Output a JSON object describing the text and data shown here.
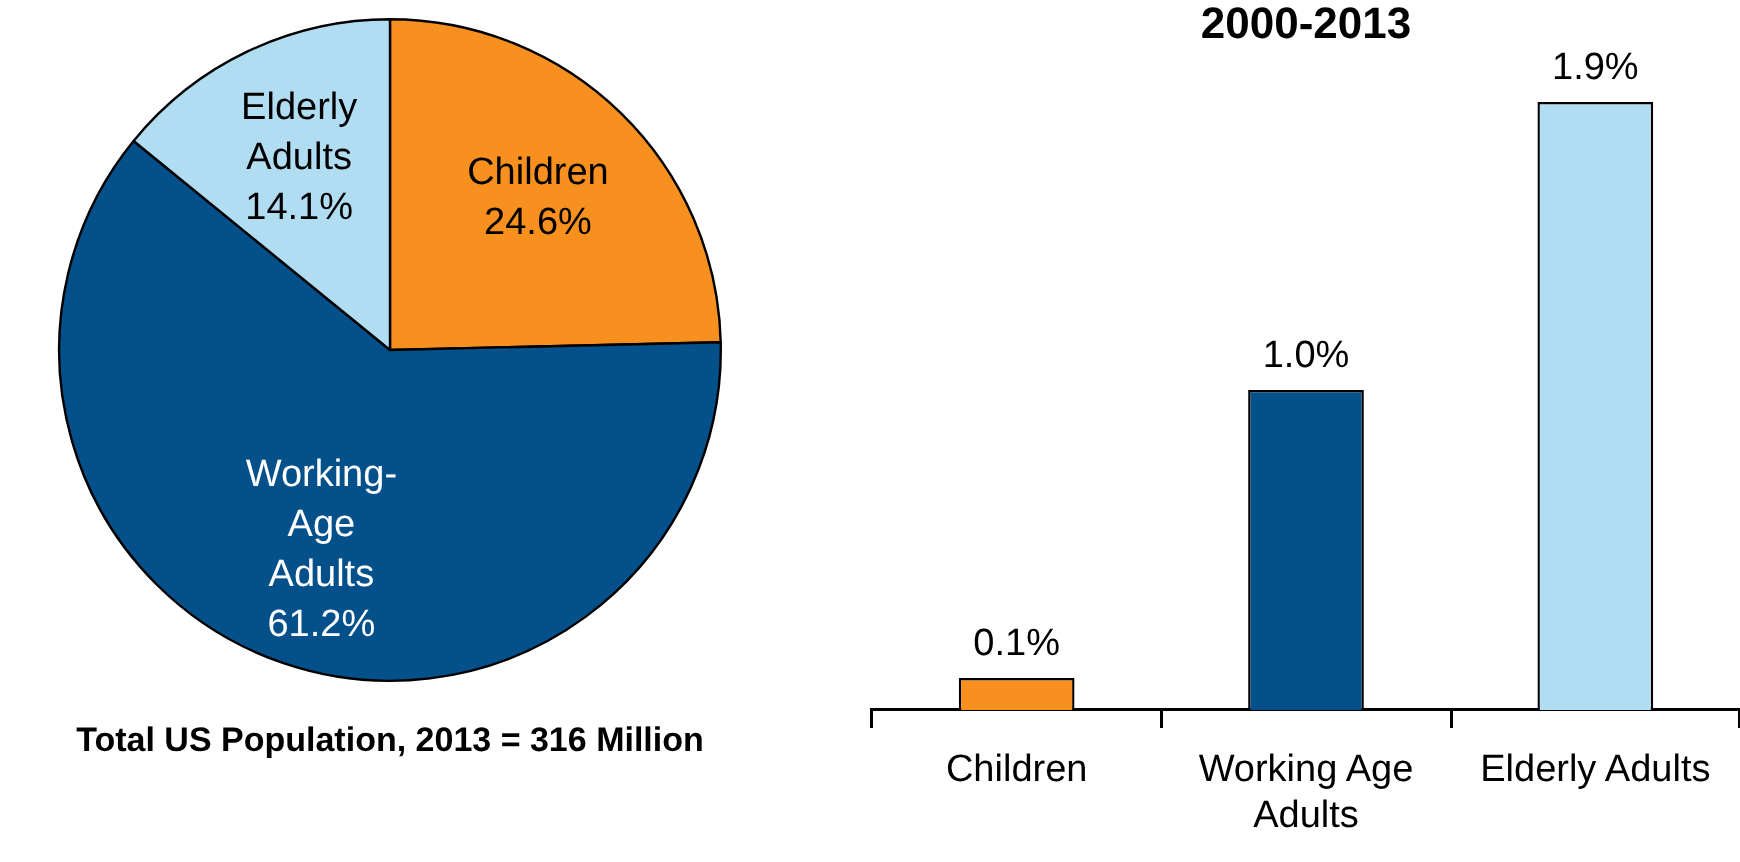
{
  "chart_data": [
    {
      "type": "pie",
      "categories": [
        "Children",
        "Working-Age Adults",
        "Elderly Adults"
      ],
      "values": [
        24.6,
        61.2,
        14.1
      ],
      "colors": [
        "#f7901e",
        "#03508a",
        "#b1ddf3"
      ],
      "value_labels": [
        "24.6%",
        "61.2%",
        "14.1%"
      ],
      "annotations": [
        "Total US Population, 2013 = 316 Million"
      ]
    },
    {
      "type": "bar",
      "title": "2000-2013",
      "categories": [
        "Children",
        "Working Age Adults",
        "Elderly Adults"
      ],
      "values": [
        0.1,
        1.0,
        1.9
      ],
      "colors": [
        "#f7901e",
        "#03508a",
        "#b1ddf3"
      ],
      "value_labels": [
        "0.1%",
        "1.0%",
        "1.9%"
      ],
      "tick_labels": "x"
    }
  ]
}
